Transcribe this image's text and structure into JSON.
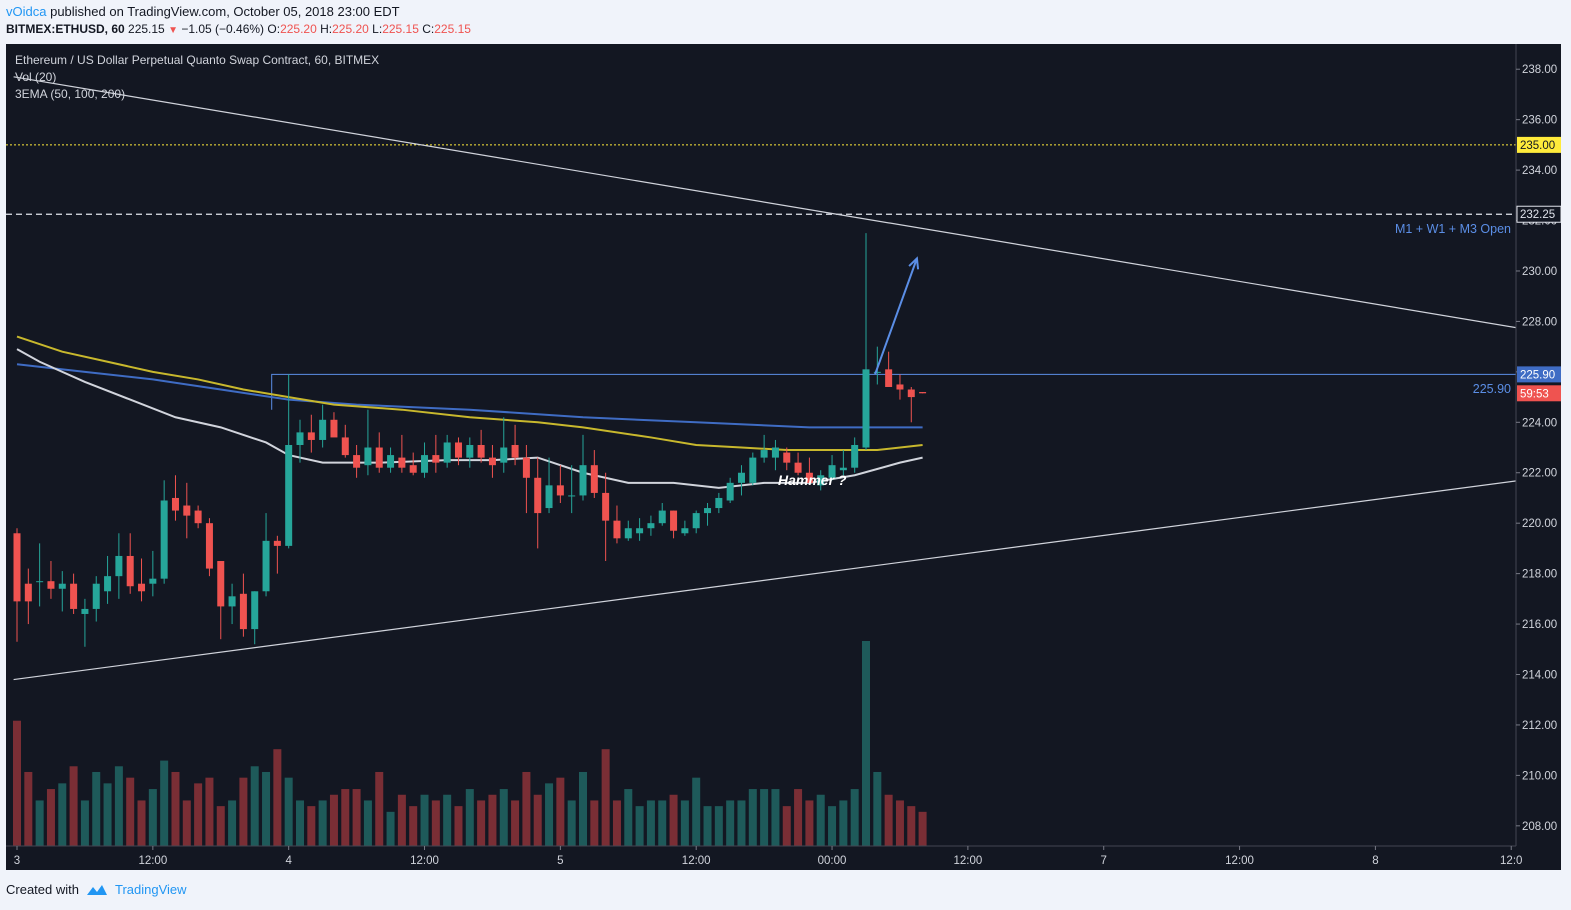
{
  "header": {
    "user": "vOidca",
    "published_text": "published on TradingView.com, October 05, 2018 23:00 EDT",
    "symbol_line": "BITMEX:ETHUSD, 60",
    "last": "225.15",
    "arrow": "▼",
    "change": "−1.05 (−0.46%)",
    "o_label": "O:",
    "o": "225.20",
    "h_label": "H:",
    "h": "225.20",
    "l_label": "L:",
    "l": "225.15",
    "c_label": "C:",
    "c": "225.15"
  },
  "legend": {
    "title": "Ethereum / US Dollar Perpetual Quanto Swap Contract, 60, BITMEX",
    "vol": "Vol (20)",
    "ema": "3EMA (50, 100, 200)"
  },
  "annotations": {
    "hammer": "Hammer ?",
    "open_level_label": "M1 + W1 + M3 Open",
    "resistance_label": "225.90"
  },
  "price_labels": {
    "yellow": "235.00",
    "dashed": "232.25",
    "blue": "225.90",
    "countdown": "59:53"
  },
  "footer": {
    "created_with": "Created with",
    "brand": "TradingView"
  },
  "colors": {
    "bg": "#131722",
    "up": "#26a69a",
    "down": "#ef5350",
    "vol_up": "#1e5a5a",
    "vol_down": "#7a2e35",
    "ema50": "#d1d4dc",
    "ema100": "#c8b82d",
    "ema200": "#3f6cc4",
    "yellow_line": "#ffeb3b",
    "blue_line": "#5b8ee6"
  },
  "chart_data": {
    "type": "candlestick",
    "ylim": [
      207.2,
      239.0
    ],
    "y_ticks": [
      "238.00",
      "236.00",
      "234.00",
      "232.00",
      "230.00",
      "228.00",
      "226.00",
      "224.00",
      "222.00",
      "220.00",
      "218.00",
      "216.00",
      "214.00",
      "212.00",
      "210.00",
      "208.00"
    ],
    "x_tick_labels": [
      "3",
      "12:00",
      "4",
      "12:00",
      "5",
      "12:00",
      "00:00",
      "12:00",
      "7",
      "12:00",
      "8",
      "12:0"
    ],
    "x_tick_hours": [
      0,
      12,
      24,
      36,
      48,
      60,
      72,
      84,
      96,
      108,
      120,
      132
    ],
    "first_candle_hour": 0,
    "candles": [
      {
        "o": 219.6,
        "h": 219.8,
        "l": 215.3,
        "c": 216.9
      },
      {
        "o": 217.6,
        "h": 218.2,
        "l": 216.0,
        "c": 216.9
      },
      {
        "o": 217.7,
        "h": 219.2,
        "l": 216.7,
        "c": 217.7
      },
      {
        "o": 217.7,
        "h": 218.5,
        "l": 217.0,
        "c": 217.4
      },
      {
        "o": 217.4,
        "h": 218.1,
        "l": 216.5,
        "c": 217.6
      },
      {
        "o": 217.6,
        "h": 218.0,
        "l": 216.4,
        "c": 216.6
      },
      {
        "o": 216.4,
        "h": 217.0,
        "l": 215.1,
        "c": 216.6
      },
      {
        "o": 216.6,
        "h": 217.9,
        "l": 216.1,
        "c": 217.6
      },
      {
        "o": 217.3,
        "h": 218.7,
        "l": 216.8,
        "c": 217.9
      },
      {
        "o": 217.9,
        "h": 219.6,
        "l": 217.0,
        "c": 218.7
      },
      {
        "o": 218.7,
        "h": 219.6,
        "l": 217.2,
        "c": 217.5
      },
      {
        "o": 217.6,
        "h": 218.6,
        "l": 216.9,
        "c": 217.3
      },
      {
        "o": 217.6,
        "h": 218.9,
        "l": 217.1,
        "c": 217.8
      },
      {
        "o": 217.8,
        "h": 221.7,
        "l": 217.6,
        "c": 220.9
      },
      {
        "o": 221.0,
        "h": 221.9,
        "l": 220.1,
        "c": 220.5
      },
      {
        "o": 220.7,
        "h": 221.6,
        "l": 219.4,
        "c": 220.3
      },
      {
        "o": 220.5,
        "h": 220.7,
        "l": 219.8,
        "c": 220.0
      },
      {
        "o": 220.0,
        "h": 220.2,
        "l": 217.9,
        "c": 218.2
      },
      {
        "o": 218.5,
        "h": 218.5,
        "l": 215.4,
        "c": 216.7
      },
      {
        "o": 216.7,
        "h": 217.6,
        "l": 216.0,
        "c": 217.1
      },
      {
        "o": 217.2,
        "h": 218.0,
        "l": 215.5,
        "c": 215.8
      },
      {
        "o": 215.8,
        "h": 217.3,
        "l": 215.2,
        "c": 217.3
      },
      {
        "o": 217.3,
        "h": 220.4,
        "l": 217.1,
        "c": 219.3
      },
      {
        "o": 219.3,
        "h": 219.5,
        "l": 218.0,
        "c": 219.1
      },
      {
        "o": 219.1,
        "h": 225.9,
        "l": 219.0,
        "c": 223.1
      },
      {
        "o": 223.1,
        "h": 224.1,
        "l": 222.4,
        "c": 223.6
      },
      {
        "o": 223.6,
        "h": 224.3,
        "l": 222.8,
        "c": 223.3
      },
      {
        "o": 223.3,
        "h": 224.7,
        "l": 223.0,
        "c": 224.1
      },
      {
        "o": 224.1,
        "h": 224.4,
        "l": 223.6,
        "c": 223.4
      },
      {
        "o": 223.4,
        "h": 223.9,
        "l": 222.6,
        "c": 222.7
      },
      {
        "o": 222.7,
        "h": 223.1,
        "l": 221.8,
        "c": 222.2
      },
      {
        "o": 222.3,
        "h": 224.5,
        "l": 221.9,
        "c": 223.0
      },
      {
        "o": 223.0,
        "h": 223.6,
        "l": 222.0,
        "c": 222.2
      },
      {
        "o": 222.2,
        "h": 223.0,
        "l": 222.0,
        "c": 222.7
      },
      {
        "o": 222.6,
        "h": 223.5,
        "l": 222.0,
        "c": 222.2
      },
      {
        "o": 222.3,
        "h": 222.8,
        "l": 221.9,
        "c": 222.0
      },
      {
        "o": 222.0,
        "h": 223.2,
        "l": 221.8,
        "c": 222.7
      },
      {
        "o": 222.7,
        "h": 223.5,
        "l": 222.0,
        "c": 222.4
      },
      {
        "o": 222.4,
        "h": 223.5,
        "l": 222.2,
        "c": 223.2
      },
      {
        "o": 223.2,
        "h": 223.4,
        "l": 222.3,
        "c": 222.6
      },
      {
        "o": 222.6,
        "h": 223.4,
        "l": 222.2,
        "c": 223.1
      },
      {
        "o": 223.1,
        "h": 223.7,
        "l": 222.4,
        "c": 222.6
      },
      {
        "o": 222.6,
        "h": 223.1,
        "l": 221.8,
        "c": 222.3
      },
      {
        "o": 222.4,
        "h": 224.2,
        "l": 222.0,
        "c": 223.0
      },
      {
        "o": 223.1,
        "h": 223.9,
        "l": 222.3,
        "c": 222.6
      },
      {
        "o": 222.6,
        "h": 223.1,
        "l": 220.4,
        "c": 221.8
      },
      {
        "o": 221.8,
        "h": 222.6,
        "l": 219.0,
        "c": 220.4
      },
      {
        "o": 220.6,
        "h": 222.6,
        "l": 220.4,
        "c": 221.5
      },
      {
        "o": 221.5,
        "h": 222.3,
        "l": 220.8,
        "c": 221.1
      },
      {
        "o": 221.1,
        "h": 222.3,
        "l": 220.4,
        "c": 221.1
      },
      {
        "o": 221.1,
        "h": 223.5,
        "l": 220.9,
        "c": 222.3
      },
      {
        "o": 222.3,
        "h": 222.9,
        "l": 221.0,
        "c": 221.2
      },
      {
        "o": 221.2,
        "h": 222.0,
        "l": 218.5,
        "c": 220.1
      },
      {
        "o": 220.1,
        "h": 220.7,
        "l": 219.2,
        "c": 219.4
      },
      {
        "o": 219.4,
        "h": 220.1,
        "l": 219.3,
        "c": 219.8
      },
      {
        "o": 219.6,
        "h": 220.2,
        "l": 219.3,
        "c": 219.8
      },
      {
        "o": 219.8,
        "h": 220.3,
        "l": 219.5,
        "c": 220.0
      },
      {
        "o": 220.0,
        "h": 220.8,
        "l": 219.9,
        "c": 220.5
      },
      {
        "o": 220.5,
        "h": 220.5,
        "l": 219.4,
        "c": 219.7
      },
      {
        "o": 219.6,
        "h": 220.1,
        "l": 219.5,
        "c": 219.8
      },
      {
        "o": 219.8,
        "h": 220.5,
        "l": 219.6,
        "c": 220.4
      },
      {
        "o": 220.4,
        "h": 220.8,
        "l": 219.9,
        "c": 220.6
      },
      {
        "o": 220.6,
        "h": 221.2,
        "l": 220.4,
        "c": 221.0
      },
      {
        "o": 220.9,
        "h": 221.8,
        "l": 220.8,
        "c": 221.6
      },
      {
        "o": 221.6,
        "h": 222.3,
        "l": 221.1,
        "c": 222.0
      },
      {
        "o": 221.6,
        "h": 222.8,
        "l": 221.5,
        "c": 222.6
      },
      {
        "o": 222.6,
        "h": 223.5,
        "l": 222.4,
        "c": 222.9
      },
      {
        "o": 222.6,
        "h": 223.3,
        "l": 222.1,
        "c": 223.0
      },
      {
        "o": 222.8,
        "h": 223.0,
        "l": 222.1,
        "c": 222.4
      },
      {
        "o": 222.4,
        "h": 222.8,
        "l": 221.9,
        "c": 222.0
      },
      {
        "o": 222.0,
        "h": 222.6,
        "l": 221.6,
        "c": 221.6
      },
      {
        "o": 221.5,
        "h": 222.1,
        "l": 221.3,
        "c": 221.9
      },
      {
        "o": 221.8,
        "h": 222.7,
        "l": 221.7,
        "c": 222.3
      },
      {
        "o": 222.1,
        "h": 222.9,
        "l": 221.9,
        "c": 222.2
      },
      {
        "o": 222.2,
        "h": 223.4,
        "l": 222.0,
        "c": 223.1
      },
      {
        "o": 223.0,
        "h": 231.5,
        "l": 222.9,
        "c": 226.1
      },
      {
        "o": 226.0,
        "h": 227.0,
        "l": 225.5,
        "c": 226.0
      },
      {
        "o": 226.1,
        "h": 226.8,
        "l": 225.5,
        "c": 225.4
      },
      {
        "o": 225.5,
        "h": 225.9,
        "l": 224.9,
        "c": 225.3
      },
      {
        "o": 225.3,
        "h": 225.4,
        "l": 224.0,
        "c": 225.0
      },
      {
        "o": 225.2,
        "h": 225.2,
        "l": 225.15,
        "c": 225.15
      }
    ],
    "volume": [
      22,
      13,
      8,
      10,
      11,
      14,
      8,
      13,
      11,
      14,
      12,
      8,
      10,
      15,
      13,
      8,
      11,
      12,
      7,
      8,
      12,
      14,
      13,
      17,
      12,
      8,
      7,
      8,
      9,
      10,
      10,
      8,
      13,
      6,
      9,
      7,
      9,
      8,
      9,
      7,
      10,
      8,
      9,
      10,
      8,
      13,
      9,
      11,
      12,
      8,
      13,
      8,
      17,
      8,
      10,
      7,
      8,
      8,
      9,
      8,
      12,
      7,
      7,
      8,
      8,
      10,
      10,
      10,
      7,
      10,
      8,
      9,
      7,
      8,
      10,
      36,
      13,
      9,
      8,
      7,
      6
    ],
    "ema50": [
      [
        0,
        226.9
      ],
      [
        2,
        226.4
      ],
      [
        6,
        225.6
      ],
      [
        10,
        224.9
      ],
      [
        14,
        224.2
      ],
      [
        18,
        223.8
      ],
      [
        22,
        223.2
      ],
      [
        24,
        222.7
      ],
      [
        27,
        222.4
      ],
      [
        32,
        222.4
      ],
      [
        38,
        222.5
      ],
      [
        42,
        222.5
      ],
      [
        46,
        222.6
      ],
      [
        50,
        222.0
      ],
      [
        54,
        221.6
      ],
      [
        58,
        221.6
      ],
      [
        62,
        221.4
      ],
      [
        66,
        221.6
      ],
      [
        70,
        221.6
      ],
      [
        74,
        221.9
      ],
      [
        78,
        222.4
      ],
      [
        80,
        222.6
      ]
    ],
    "ema100": [
      [
        0,
        227.4
      ],
      [
        4,
        226.8
      ],
      [
        8,
        226.4
      ],
      [
        12,
        226.0
      ],
      [
        16,
        225.7
      ],
      [
        20,
        225.3
      ],
      [
        24,
        225.0
      ],
      [
        28,
        224.7
      ],
      [
        34,
        224.5
      ],
      [
        40,
        224.2
      ],
      [
        46,
        224.0
      ],
      [
        50,
        223.8
      ],
      [
        56,
        223.4
      ],
      [
        60,
        223.1
      ],
      [
        64,
        223.0
      ],
      [
        68,
        222.9
      ],
      [
        72,
        222.9
      ],
      [
        76,
        222.9
      ],
      [
        80,
        223.1
      ]
    ],
    "ema200": [
      [
        0,
        226.3
      ],
      [
        6,
        226.0
      ],
      [
        12,
        225.7
      ],
      [
        18,
        225.3
      ],
      [
        24,
        224.9
      ],
      [
        30,
        224.7
      ],
      [
        40,
        224.5
      ],
      [
        50,
        224.2
      ],
      [
        60,
        224.0
      ],
      [
        70,
        223.8
      ],
      [
        76,
        223.8
      ],
      [
        80,
        223.8
      ]
    ],
    "trend_down": [
      [
        -0.3,
        237.7
      ],
      [
        134.5,
        227.6
      ]
    ],
    "trend_up": [
      [
        -0.3,
        213.8
      ],
      [
        134.5,
        221.8
      ]
    ],
    "h_yellow": 235.0,
    "h_dashed": 232.25,
    "h_blue": 225.9,
    "h_blue_start_hour": 22.5,
    "arrow": [
      [
        75.8,
        225.9
      ],
      [
        79.5,
        230.5
      ]
    ]
  }
}
